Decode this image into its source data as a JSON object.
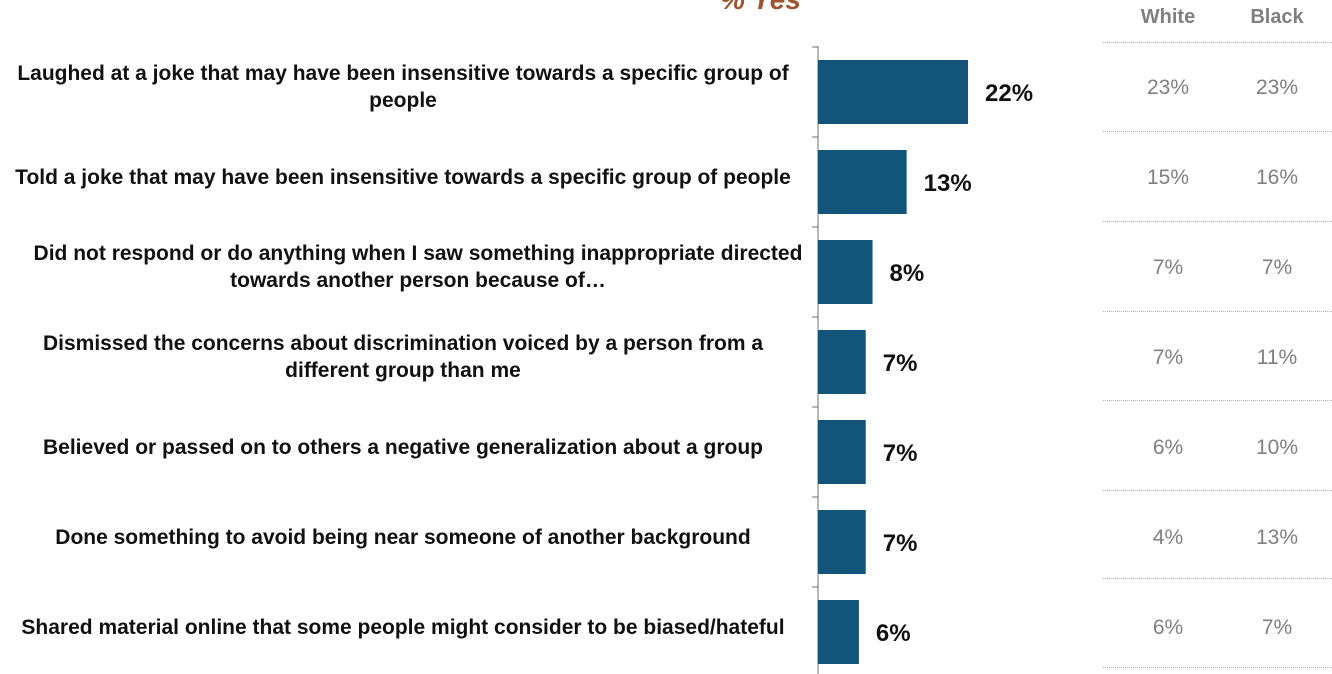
{
  "chart_data": {
    "type": "bar",
    "orientation": "horizontal",
    "title": "% Yes",
    "categories": [
      "Laughed at a joke that may have been insensitive towards a specific group of people",
      "Told a joke that may have been insensitive towards a specific group of people",
      "Did not respond or do anything when I saw something inappropriate directed towards another person because of…",
      "Dismissed the concerns about discrimination voiced by a person from a different group than me",
      "Believed or passed on to others a negative generalization about a group",
      "Done something to avoid being near someone of another background",
      "Shared material online that some people might consider to be biased/hateful"
    ],
    "values": [
      22,
      13,
      8,
      7,
      7,
      7,
      6
    ],
    "value_labels": [
      "22%",
      "13%",
      "8%",
      "7%",
      "7%",
      "7%",
      "6%"
    ],
    "bar_color": "#135579",
    "xlim": [
      0,
      50
    ]
  },
  "table": {
    "headers": [
      "White",
      "Black"
    ],
    "rows": [
      [
        "23%",
        "23%"
      ],
      [
        "15%",
        "16%"
      ],
      [
        "7%",
        "7%"
      ],
      [
        "7%",
        "11%"
      ],
      [
        "6%",
        "10%"
      ],
      [
        "4%",
        "13%"
      ],
      [
        "6%",
        "7%"
      ]
    ]
  }
}
